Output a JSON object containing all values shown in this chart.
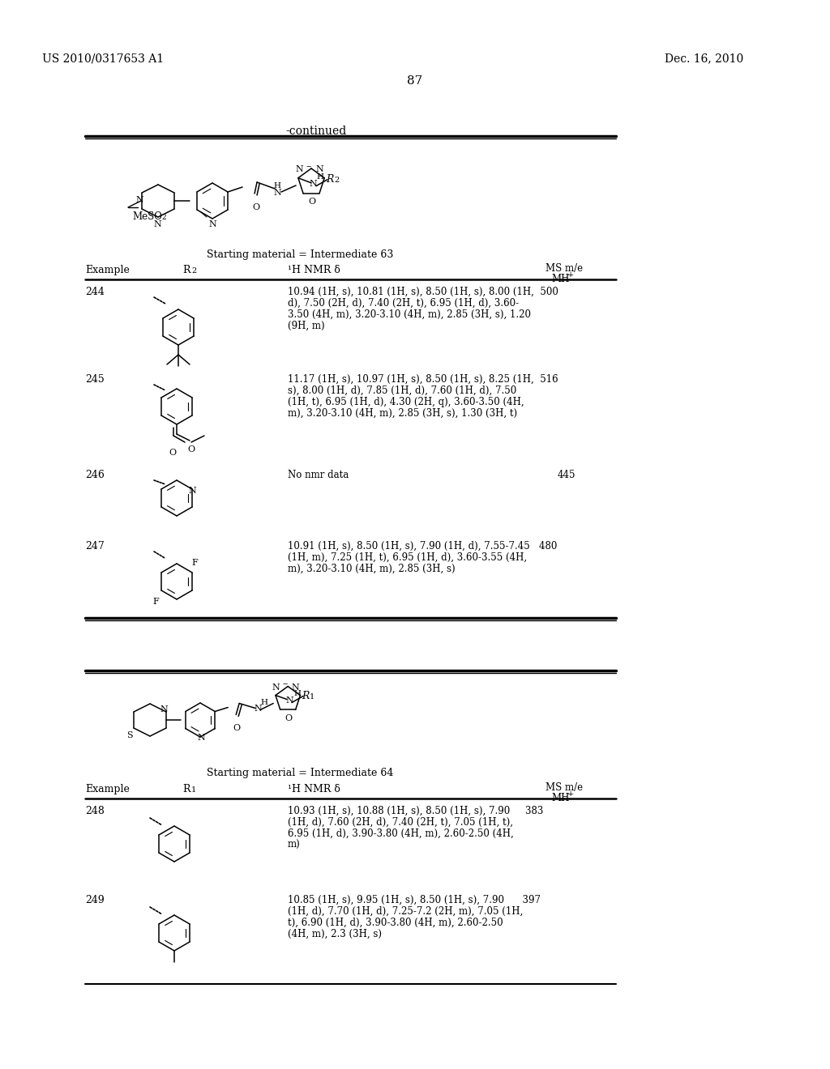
{
  "patent_number": "US 2010/0317653 A1",
  "date": "Dec. 16, 2010",
  "page_number": "87",
  "continued_label": "-continued",
  "structure1_caption": "Starting material = Intermediate 63",
  "structure2_caption": "Starting material = Intermediate 64",
  "rows1": [
    {
      "example": "244",
      "nmr": "10.94 (1H, s), 10.81 (1H, s), 8.50 (1H, s), 8.00 (1H,  500\nd), 7.50 (2H, d), 7.40 (2H, t), 6.95 (1H, d), 3.60-\n3.50 (4H, m), 3.20-3.10 (4H, m), 2.85 (3H, s), 1.20\n(9H, m)"
    },
    {
      "example": "245",
      "nmr": "11.17 (1H, s), 10.97 (1H, s), 8.50 (1H, s), 8.25 (1H,  516\ns), 8.00 (1H, d), 7.85 (1H, d), 7.60 (1H, d), 7.50\n(1H, t), 6.95 (1H, d), 4.30 (2H, q), 3.60-3.50 (4H,\nm), 3.20-3.10 (4H, m), 2.85 (3H, s), 1.30 (3H, t)"
    },
    {
      "example": "246",
      "nmr": "No nmr data",
      "ms_only": "445"
    },
    {
      "example": "247",
      "nmr": "10.91 (1H, s), 8.50 (1H, s), 7.90 (1H, d), 7.55-7.45   480\n(1H, m), 7.25 (1H, t), 6.95 (1H, d), 3.60-3.55 (4H,\nm), 3.20-3.10 (4H, m), 2.85 (3H, s)"
    }
  ],
  "rows2": [
    {
      "example": "248",
      "nmr": "10.93 (1H, s), 10.88 (1H, s), 8.50 (1H, s), 7.90     383\n(1H, d), 7.60 (2H, d), 7.40 (2H, t), 7.05 (1H, t),\n6.95 (1H, d), 3.90-3.80 (4H, m), 2.60-2.50 (4H,\nm)"
    },
    {
      "example": "249",
      "nmr": "10.85 (1H, s), 9.95 (1H, s), 8.50 (1H, s), 7.90      397\n(1H, d), 7.70 (1H, d), 7.25-7.2 (2H, m), 7.05 (1H,\nt), 6.90 (1H, d), 3.90-3.80 (4H, m), 2.60-2.50\n(4H, m), 2.3 (3H, s)"
    }
  ]
}
